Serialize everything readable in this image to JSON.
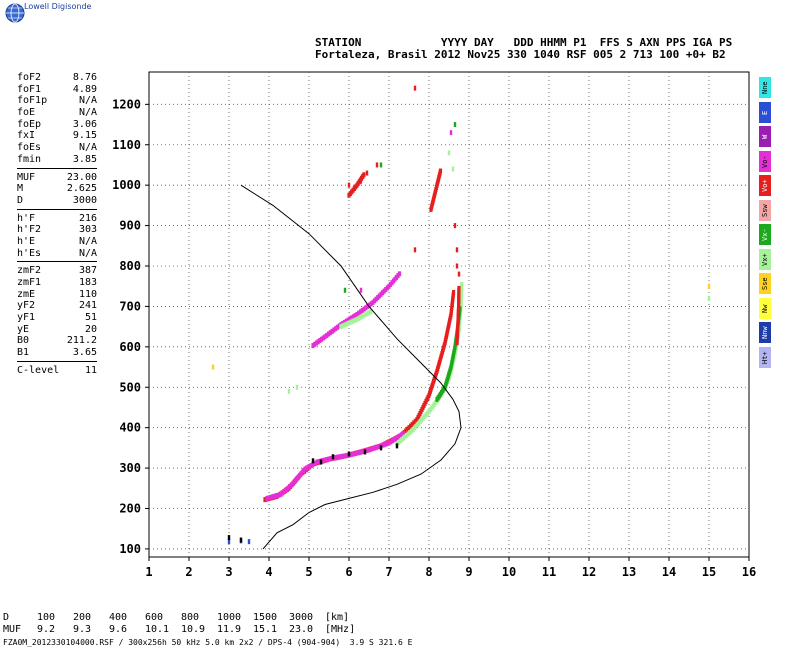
{
  "logo": {
    "text": "Lowell Digisonde",
    "icon": "globe-icon"
  },
  "header": {
    "line1": "STATION            YYYY DAY   DDD HHMM P1  FFS S AXN PPS IGA PS",
    "line2": "Fortaleza, Brasil 2012 Nov25 330 1040 RSF 005 2 713 100 +0+ B2"
  },
  "params": [
    {
      "name": "foF2",
      "value": "8.76"
    },
    {
      "name": "foF1",
      "value": "4.89"
    },
    {
      "name": "foF1p",
      "value": "N/A"
    },
    {
      "name": "foE",
      "value": "N/A"
    },
    {
      "name": "foEp",
      "value": "3.06"
    },
    {
      "name": "fxI",
      "value": "9.15"
    },
    {
      "name": "foEs",
      "value": "N/A"
    },
    {
      "name": "fmin",
      "value": "3.85"
    },
    {
      "sep": true
    },
    {
      "name": "MUF",
      "value": "23.00"
    },
    {
      "name": "M",
      "value": "2.625"
    },
    {
      "name": "D",
      "value": "3000"
    },
    {
      "sep": true
    },
    {
      "name": "h'F",
      "value": "216"
    },
    {
      "name": "h'F2",
      "value": "303"
    },
    {
      "name": "h'E",
      "value": "N/A"
    },
    {
      "name": "h'Es",
      "value": "N/A"
    },
    {
      "sep": true
    },
    {
      "name": "zmF2",
      "value": "387"
    },
    {
      "name": "zmF1",
      "value": "183"
    },
    {
      "name": "zmE",
      "value": "110"
    },
    {
      "name": "yF2",
      "value": "241"
    },
    {
      "name": "yF1",
      "value": "51"
    },
    {
      "name": "yE",
      "value": "20"
    },
    {
      "name": "B0",
      "value": "211.2"
    },
    {
      "name": "B1",
      "value": "3.65"
    },
    {
      "sep": true
    },
    {
      "name": "C-level",
      "value": "11"
    }
  ],
  "legend": [
    {
      "label": "Nne",
      "color": "#33e6e6"
    },
    {
      "label": "E",
      "color": "#2a4ed6"
    },
    {
      "label": "W",
      "color": "#9a1fb0"
    },
    {
      "label": "Vo-",
      "color": "#e52fd6"
    },
    {
      "label": "Vo+",
      "color": "#e61e1e"
    },
    {
      "label": "Ssw",
      "color": "#f2a6a6"
    },
    {
      "label": "Vx-",
      "color": "#1ea81e"
    },
    {
      "label": "Vx+",
      "color": "#a6f29a"
    },
    {
      "label": "Sse",
      "color": "#ffd21e"
    },
    {
      "label": "Nw",
      "color": "#ffff3a"
    },
    {
      "label": "Nnw",
      "color": "#1e3ca8"
    },
    {
      "label": "Ht+",
      "color": "#b4b4f0"
    }
  ],
  "chart_data": {
    "type": "scatter",
    "title": "",
    "xlabel": "",
    "ylabel": "",
    "xlim": [
      1,
      16
    ],
    "ylim": [
      80,
      1280
    ],
    "x_ticks": [
      1,
      2,
      3,
      4,
      5,
      6,
      7,
      8,
      9,
      10,
      11,
      12,
      13,
      14,
      15,
      16
    ],
    "y_ticks": [
      100,
      200,
      300,
      400,
      500,
      600,
      700,
      800,
      900,
      1000,
      1100,
      1200
    ],
    "grid": true,
    "profile": [
      [
        3.85,
        100
      ],
      [
        4.2,
        140
      ],
      [
        4.6,
        160
      ],
      [
        5.0,
        190
      ],
      [
        5.4,
        210
      ],
      [
        6.0,
        225
      ],
      [
        6.6,
        240
      ],
      [
        7.2,
        260
      ],
      [
        7.8,
        285
      ],
      [
        8.3,
        320
      ],
      [
        8.65,
        360
      ],
      [
        8.8,
        400
      ],
      [
        8.75,
        440
      ],
      [
        8.6,
        470
      ],
      [
        8.3,
        510
      ],
      [
        7.8,
        560
      ],
      [
        7.2,
        620
      ],
      [
        6.5,
        700
      ],
      [
        5.8,
        800
      ],
      [
        5.0,
        880
      ],
      [
        4.1,
        950
      ],
      [
        3.3,
        1000
      ]
    ],
    "series": [
      {
        "color": "#e61e1e",
        "trace": [
          [
            3.9,
            222
          ],
          [
            4.2,
            230
          ],
          [
            4.5,
            250
          ],
          [
            4.8,
            285
          ],
          [
            5.1,
            310
          ],
          [
            5.5,
            322
          ],
          [
            5.9,
            330
          ],
          [
            6.3,
            340
          ],
          [
            6.8,
            355
          ],
          [
            7.3,
            380
          ],
          [
            7.7,
            420
          ],
          [
            8.0,
            480
          ],
          [
            8.2,
            540
          ],
          [
            8.4,
            610
          ],
          [
            8.55,
            680
          ],
          [
            8.62,
            740
          ]
        ]
      },
      {
        "color": "#e52fd6",
        "trace": [
          [
            3.95,
            225
          ],
          [
            4.3,
            235
          ],
          [
            4.6,
            262
          ],
          [
            4.9,
            298
          ],
          [
            5.2,
            315
          ],
          [
            5.6,
            325
          ],
          [
            6.0,
            332
          ],
          [
            6.5,
            345
          ],
          [
            7.0,
            362
          ],
          [
            7.4,
            388
          ]
        ]
      },
      {
        "color": "#a6f29a",
        "trace": [
          [
            7.2,
            360
          ],
          [
            7.6,
            395
          ],
          [
            8.0,
            440
          ],
          [
            8.3,
            480
          ],
          [
            8.5,
            520
          ],
          [
            8.65,
            580
          ],
          [
            8.75,
            640
          ],
          [
            8.8,
            700
          ],
          [
            8.82,
            760
          ]
        ]
      },
      {
        "color": "#1ea81e",
        "trace": [
          [
            8.2,
            470
          ],
          [
            8.4,
            500
          ],
          [
            8.55,
            550
          ],
          [
            8.65,
            600
          ],
          [
            8.72,
            650
          ],
          [
            8.78,
            700
          ]
        ]
      },
      {
        "color": "#e52fd6",
        "trace": [
          [
            5.1,
            603
          ],
          [
            5.4,
            625
          ],
          [
            5.8,
            655
          ],
          [
            6.2,
            680
          ],
          [
            6.6,
            710
          ],
          [
            7.0,
            750
          ],
          [
            7.3,
            785
          ]
        ]
      },
      {
        "color": "#a6f29a",
        "trace": [
          [
            5.8,
            650
          ],
          [
            6.2,
            668
          ],
          [
            6.6,
            690
          ]
        ]
      },
      {
        "color": "#e61e1e",
        "trace": [
          [
            8.7,
            610
          ],
          [
            8.72,
            650
          ],
          [
            8.74,
            700
          ],
          [
            8.75,
            750
          ]
        ]
      },
      {
        "color": "#e61e1e",
        "trace": [
          [
            6.0,
            975
          ],
          [
            6.2,
            1000
          ],
          [
            6.4,
            1030
          ]
        ]
      },
      {
        "color": "#e61e1e",
        "trace": [
          [
            8.05,
            940
          ],
          [
            8.2,
            1000
          ],
          [
            8.3,
            1040
          ]
        ]
      }
    ],
    "scatter": [
      {
        "color": "#e61e1e",
        "pts": [
          [
            7.65,
            1240
          ],
          [
            7.65,
            840
          ],
          [
            8.65,
            900
          ],
          [
            8.7,
            840
          ],
          [
            8.7,
            800
          ],
          [
            8.75,
            780
          ],
          [
            6.45,
            1030
          ],
          [
            6.7,
            1050
          ],
          [
            6.0,
            1000
          ],
          [
            6.3,
            1010
          ]
        ]
      },
      {
        "color": "#1ea81e",
        "pts": [
          [
            8.65,
            1150
          ],
          [
            6.8,
            1050
          ],
          [
            5.9,
            740
          ]
        ]
      },
      {
        "color": "#a6f29a",
        "pts": [
          [
            8.5,
            1080
          ],
          [
            8.6,
            1040
          ],
          [
            4.7,
            500
          ],
          [
            4.5,
            490
          ],
          [
            15.0,
            720
          ]
        ]
      },
      {
        "color": "#e52fd6",
        "pts": [
          [
            8.55,
            1130
          ],
          [
            6.3,
            740
          ]
        ]
      },
      {
        "color": "#ffd21e",
        "pts": [
          [
            2.6,
            550
          ],
          [
            15.0,
            750
          ]
        ]
      },
      {
        "color": "#2a4ed6",
        "pts": [
          [
            3.3,
            120
          ],
          [
            3.5,
            118
          ],
          [
            3.0,
            118
          ]
        ]
      },
      {
        "color": "#000000",
        "pts": [
          [
            3.0,
            128
          ],
          [
            3.3,
            122
          ],
          [
            5.1,
            318
          ],
          [
            5.3,
            315
          ],
          [
            5.6,
            328
          ],
          [
            6.0,
            335
          ],
          [
            6.4,
            340
          ],
          [
            6.8,
            350
          ],
          [
            7.2,
            355
          ]
        ]
      }
    ]
  },
  "footer": {
    "d_label": "D",
    "d_values": [
      "100",
      "200",
      "400",
      "600",
      "800",
      "1000",
      "1500",
      "3000",
      "[km]"
    ],
    "muf_label": "MUF",
    "muf_values": [
      "9.2",
      "9.3",
      "9.6",
      "10.1",
      "10.9",
      "11.9",
      "15.1",
      "23.0",
      "[MHz]"
    ],
    "note": "FZA0M_2012330104000.RSF / 300x256h 50 kHz 5.0 km 2x2 / DPS-4 (904-904)  3.9 S 321.6 E"
  }
}
